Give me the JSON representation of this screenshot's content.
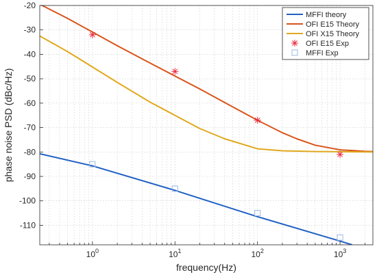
{
  "chart_data": {
    "type": "line",
    "title": "",
    "xlabel": "frequency(Hz)",
    "ylabel": "phase noise PSD (dBc/Hz)",
    "x_scale": "log",
    "xlim": [
      0.23,
      2500
    ],
    "ylim": [
      -118,
      -20
    ],
    "grid": true,
    "legend_position": "top-right",
    "x_ticks": [
      {
        "value": 1,
        "base": "10",
        "exp": "0"
      },
      {
        "value": 10,
        "base": "10",
        "exp": "1"
      },
      {
        "value": 100,
        "base": "10",
        "exp": "2"
      },
      {
        "value": 1000,
        "base": "10",
        "exp": "3"
      }
    ],
    "y_ticks": [
      -20,
      -30,
      -40,
      -50,
      -60,
      -70,
      -80,
      -90,
      -100,
      -110
    ],
    "series": [
      {
        "name": "MFFI theory",
        "kind": "line",
        "color": "#1f5fc4",
        "x": [
          0.23,
          1,
          10,
          100,
          1000,
          1400
        ],
        "y": [
          -80.7,
          -85.7,
          -95.7,
          -106.5,
          -116.5,
          -118
        ]
      },
      {
        "name": "OFI E15 Theory",
        "kind": "line",
        "color": "#d95319",
        "x": [
          0.23,
          0.5,
          1,
          2,
          5,
          10,
          20,
          50,
          100,
          200,
          300,
          500,
          1000,
          2000,
          2500
        ],
        "y": [
          -19.5,
          -25.3,
          -30.9,
          -36.5,
          -43.6,
          -48.9,
          -54.2,
          -61.5,
          -67.0,
          -72.1,
          -74.6,
          -77.2,
          -79.1,
          -79.7,
          -79.8
        ]
      },
      {
        "name": "OFI X15 Theory",
        "kind": "line",
        "color": "#e0a81b",
        "x": [
          0.23,
          0.5,
          1,
          2,
          5,
          10,
          20,
          40,
          100,
          200,
          500,
          1000,
          2500
        ],
        "y": [
          -32.5,
          -38.9,
          -45.2,
          -51.5,
          -59.6,
          -65.0,
          -70.4,
          -74.6,
          -78.7,
          -79.5,
          -79.8,
          -79.9,
          -80.0
        ]
      },
      {
        "name": "OFI E15 Exp",
        "kind": "marker-asterisk",
        "color": "#e8283c",
        "x": [
          1,
          10,
          100,
          1000
        ],
        "y": [
          -32,
          -47,
          -67,
          -81
        ]
      },
      {
        "name": "MFFI Exp",
        "kind": "marker-square",
        "color": "#9ab8e2",
        "x": [
          1,
          10,
          100,
          1000
        ],
        "y": [
          -85,
          -95,
          -105,
          -115
        ]
      }
    ]
  }
}
